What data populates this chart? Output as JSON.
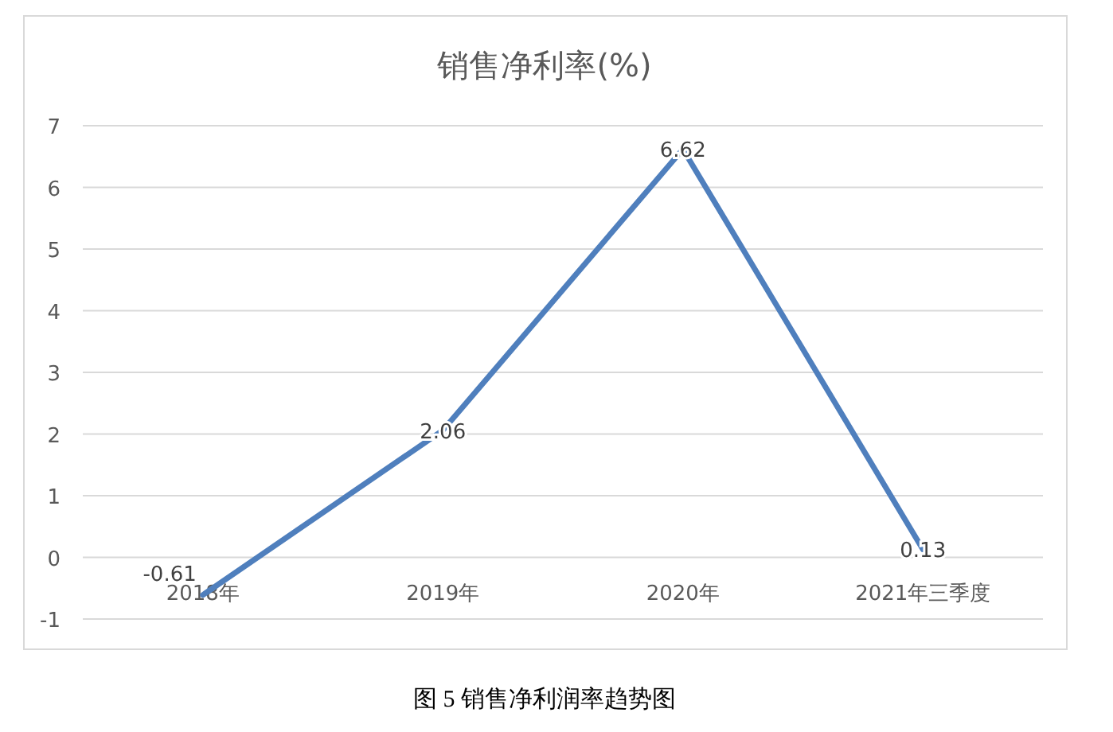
{
  "chart_data": {
    "type": "line",
    "title": "销售净利率(%)",
    "categories": [
      "2018年",
      "2019年",
      "2020年",
      "2021年三季度"
    ],
    "series": [
      {
        "color": "#4f7fbd",
        "values": [
          -0.61,
          2.06,
          6.62,
          0.13
        ]
      }
    ],
    "ylim": [
      -1,
      7
    ],
    "yticks": [
      -1,
      0,
      1,
      2,
      3,
      4,
      5,
      6,
      7
    ],
    "grid": "y",
    "data_labels": true,
    "marker": "none",
    "line_style": "solid",
    "annotations": [
      "图 5  销售净利润率趋势图"
    ]
  }
}
